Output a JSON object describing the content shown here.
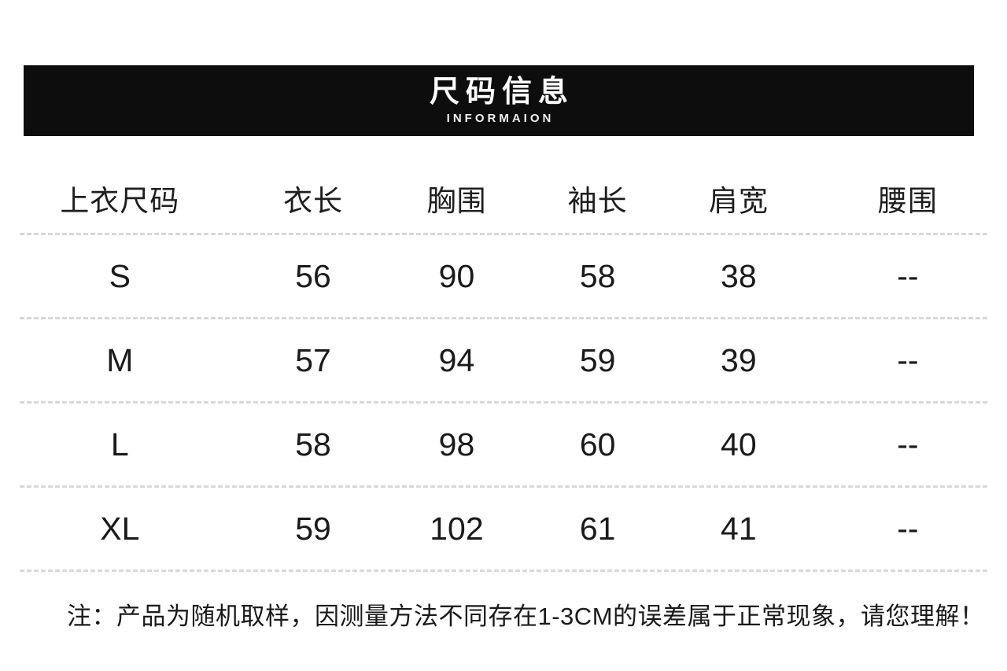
{
  "banner": {
    "title": "尺码信息",
    "subtitle": "INFORMAION"
  },
  "table": {
    "headers": [
      "上衣尺码",
      "衣长",
      "胸围",
      "袖长",
      "肩宽",
      "腰围"
    ],
    "rows": [
      [
        "S",
        "56",
        "90",
        "58",
        "38",
        "--"
      ],
      [
        "M",
        "57",
        "94",
        "59",
        "39",
        "--"
      ],
      [
        "L",
        "58",
        "98",
        "60",
        "40",
        "--"
      ],
      [
        "XL",
        "59",
        "102",
        "61",
        "41",
        "--"
      ]
    ]
  },
  "note": "注：产品为随机取样，因测量方法不同存在1-3CM的误差属于正常现象，请您理解！",
  "colors": {
    "banner_bg": "#0d0d0d",
    "banner_text": "#ffffff",
    "table_text": "#1a1a1a",
    "divider": "#d8d8d8",
    "background": "#ffffff"
  }
}
